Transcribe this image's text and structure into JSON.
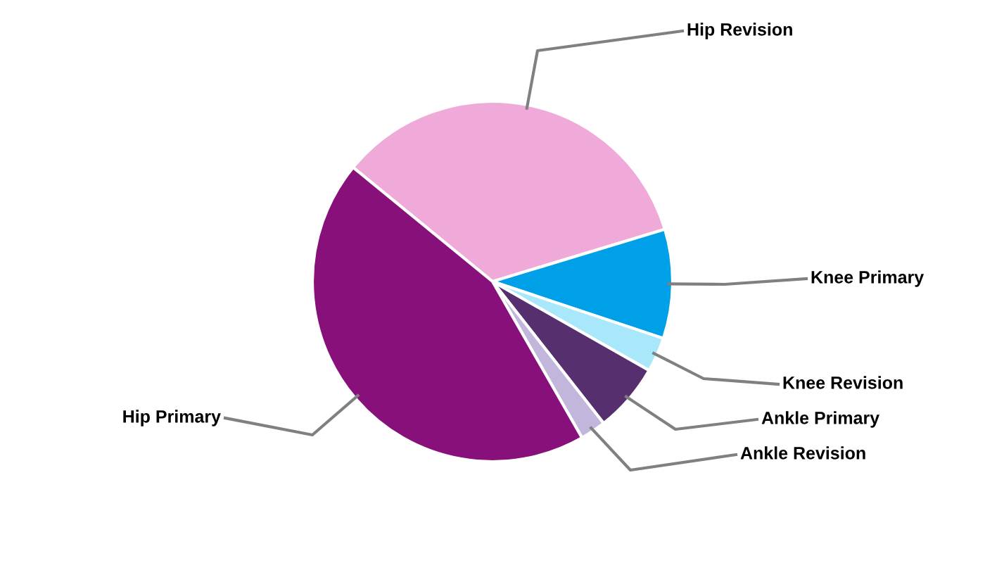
{
  "chart_data": {
    "type": "pie",
    "categories": [
      "Hip Revision",
      "Knee Primary",
      "Knee Revision",
      "Ankle Primary",
      "Ankle Revision",
      "Hip Primary"
    ],
    "values": [
      34.4,
      9.8,
      3.1,
      6.2,
      2.3,
      44.2
    ],
    "colors": [
      "#f0aad9",
      "#00a0e9",
      "#a8e8fa",
      "#56306e",
      "#c2b6dd",
      "#88107a"
    ],
    "legend": false
  }
}
